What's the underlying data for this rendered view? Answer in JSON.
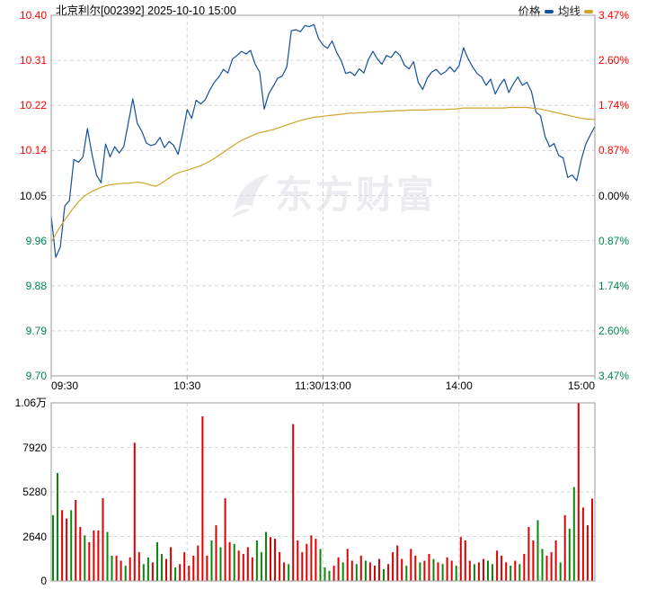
{
  "header": {
    "title": "北京利尔[002392] 2025-10-10 15:00"
  },
  "legend": {
    "price_label": "价格",
    "avg_label": "均线"
  },
  "watermark_text": "东方财富",
  "colors": {
    "up_text": "#ff0000",
    "down_text": "#00884f",
    "neutral_text": "#000000",
    "price_line": "#15509b",
    "avg_line": "#d0a428",
    "bar_up": "#e00000",
    "bar_down": "#0a8a0a",
    "grid": "#d6d6d6",
    "border": "#9a9a9a",
    "watermark": "#ececf0"
  },
  "axes": {
    "price_left": [
      {
        "t": "10.40",
        "c": "#ff0000"
      },
      {
        "t": "10.31",
        "c": "#ff0000"
      },
      {
        "t": "10.22",
        "c": "#ff0000"
      },
      {
        "t": "10.14",
        "c": "#ff0000"
      },
      {
        "t": "10.05",
        "c": "#000000"
      },
      {
        "t": "9.96",
        "c": "#00884f"
      },
      {
        "t": "9.88",
        "c": "#00884f"
      },
      {
        "t": "9.79",
        "c": "#00884f"
      },
      {
        "t": "9.70",
        "c": "#00884f"
      }
    ],
    "pct_right": [
      {
        "t": "3.47%",
        "c": "#ff0000"
      },
      {
        "t": "2.60%",
        "c": "#ff0000"
      },
      {
        "t": "1.74%",
        "c": "#ff0000"
      },
      {
        "t": "0.87%",
        "c": "#ff0000"
      },
      {
        "t": "0.00%",
        "c": "#000000"
      },
      {
        "t": "0.87%",
        "c": "#00884f"
      },
      {
        "t": "1.74%",
        "c": "#00884f"
      },
      {
        "t": "2.60%",
        "c": "#00884f"
      },
      {
        "t": "3.47%",
        "c": "#00884f"
      }
    ],
    "time": [
      "09:30",
      "10:30",
      "11:30/13:00",
      "14:00",
      "15:00"
    ],
    "volume": [
      "1.06万",
      "7920",
      "5280",
      "2640",
      "0"
    ]
  },
  "chart_data": [
    {
      "type": "line",
      "title": "intraday price vs average (北京利尔 002392)",
      "x_ticks": [
        "09:30",
        "10:30",
        "11:30/13:00",
        "14:00",
        "15:00"
      ],
      "ylim": [
        9.7,
        10.4
      ],
      "pct_ylim": [
        -3.47,
        3.47
      ],
      "prev_close": 10.05,
      "grid": true,
      "legend_position": "top-right",
      "series": [
        {
          "name": "价格",
          "color": "#15509b",
          "values": [
            10.01,
            9.93,
            9.95,
            10.03,
            10.04,
            10.12,
            10.115,
            10.125,
            10.18,
            10.13,
            10.09,
            10.075,
            10.15,
            10.125,
            10.145,
            10.133,
            10.145,
            10.19,
            10.238,
            10.19,
            10.175,
            10.152,
            10.147,
            10.15,
            10.163,
            10.143,
            10.155,
            10.148,
            10.13,
            10.17,
            10.217,
            10.2,
            10.235,
            10.228,
            10.236,
            10.255,
            10.27,
            10.28,
            10.295,
            10.288,
            10.315,
            10.322,
            10.33,
            10.325,
            10.332,
            10.305,
            10.29,
            10.218,
            10.247,
            10.262,
            10.278,
            10.282,
            10.3,
            10.37,
            10.372,
            10.368,
            10.38,
            10.378,
            10.382,
            10.355,
            10.342,
            10.336,
            10.35,
            10.328,
            10.312,
            10.287,
            10.29,
            10.283,
            10.296,
            10.288,
            10.314,
            10.33,
            10.315,
            10.305,
            10.322,
            10.318,
            10.33,
            10.322,
            10.303,
            10.296,
            10.31,
            10.27,
            10.256,
            10.278,
            10.29,
            10.295,
            10.285,
            10.29,
            10.3,
            10.29,
            10.302,
            10.337,
            10.316,
            10.3,
            10.287,
            10.28,
            10.264,
            10.276,
            10.247,
            10.264,
            10.276,
            10.25,
            10.267,
            10.28,
            10.264,
            10.27,
            10.252,
            10.212,
            10.205,
            10.165,
            10.145,
            10.151,
            10.128,
            10.123,
            10.085,
            10.09,
            10.079,
            10.12,
            10.15,
            10.168,
            10.184
          ]
        },
        {
          "name": "均线",
          "color": "#d0a428",
          "values": [
            9.96,
            9.975,
            9.99,
            10.003,
            10.015,
            10.027,
            10.038,
            10.047,
            10.053,
            10.058,
            10.062,
            10.066,
            10.069,
            10.071,
            10.072,
            10.073,
            10.074,
            10.074,
            10.075,
            10.076,
            10.075,
            10.073,
            10.07,
            10.068,
            10.072,
            10.078,
            10.084,
            10.09,
            10.094,
            10.097,
            10.099,
            10.102,
            10.105,
            10.108,
            10.112,
            10.117,
            10.122,
            10.128,
            10.134,
            10.14,
            10.146,
            10.152,
            10.157,
            10.161,
            10.165,
            10.169,
            10.172,
            10.174,
            10.176,
            10.178,
            10.181,
            10.184,
            10.187,
            10.19,
            10.193,
            10.196,
            10.198,
            10.2,
            10.202,
            10.203,
            10.204,
            10.205,
            10.206,
            10.207,
            10.208,
            10.209,
            10.21,
            10.21,
            10.211,
            10.211,
            10.212,
            10.212,
            10.213,
            10.213,
            10.214,
            10.214,
            10.215,
            10.215,
            10.215,
            10.216,
            10.216,
            10.216,
            10.216,
            10.216,
            10.217,
            10.217,
            10.217,
            10.217,
            10.218,
            10.218,
            10.219,
            10.22,
            10.22,
            10.22,
            10.22,
            10.22,
            10.22,
            10.22,
            10.22,
            10.22,
            10.22,
            10.221,
            10.221,
            10.221,
            10.221,
            10.221,
            10.22,
            10.219,
            10.218,
            10.216,
            10.214,
            10.212,
            10.21,
            10.208,
            10.206,
            10.204,
            10.202,
            10.2,
            10.199,
            10.198,
            10.198
          ]
        }
      ]
    },
    {
      "type": "bar",
      "title": "volume (手)",
      "ylim": [
        0,
        10560
      ],
      "y_ticks": [
        "1.06万",
        "7920",
        "5280",
        "2640",
        "0"
      ],
      "values": [
        3900,
        6400,
        4200,
        3700,
        4200,
        4800,
        3200,
        2700,
        2300,
        3000,
        3000,
        4900,
        2900,
        1500,
        1500,
        1200,
        900,
        1400,
        8200,
        1700,
        1000,
        1400,
        1100,
        2300,
        1600,
        1300,
        2000,
        800,
        1000,
        1700,
        900,
        1500,
        2100,
        9760,
        1500,
        2400,
        3300,
        2000,
        4900,
        2300,
        2200,
        1800,
        1600,
        2000,
        1400,
        2400,
        1700,
        2900,
        2600,
        2500,
        1700,
        1100,
        1000,
        9300,
        2400,
        1700,
        2200,
        2700,
        2500,
        1900,
        800,
        600,
        900,
        1400,
        1100,
        1900,
        1200,
        1000,
        1500,
        1200,
        1100,
        900,
        1300,
        700,
        1000,
        1700,
        2100,
        1300,
        900,
        1900,
        1500,
        1100,
        1200,
        1600,
        1300,
        1100,
        1000,
        1400,
        1200,
        900,
        2600,
        2400,
        1200,
        1000,
        1100,
        1300,
        1200,
        1000,
        1800,
        1500,
        1100,
        900,
        1200,
        1000,
        1600,
        3200,
        2400,
        3600,
        1900,
        1500,
        1700,
        2400,
        1100,
        3900,
        3100,
        5570,
        10560,
        4350,
        3300,
        4880
      ],
      "colors": "ggrrgrrgrrrrggrrgrrrggrggrrgrrrrrrrgrgrrgrrrrgggrrrrgrrrrrrgggrrgrrgrgrrrgrrrrgrrgrrgrgrrgrrrgrrggrrrgrgrrrggrrrgrggrrrr"
    }
  ]
}
